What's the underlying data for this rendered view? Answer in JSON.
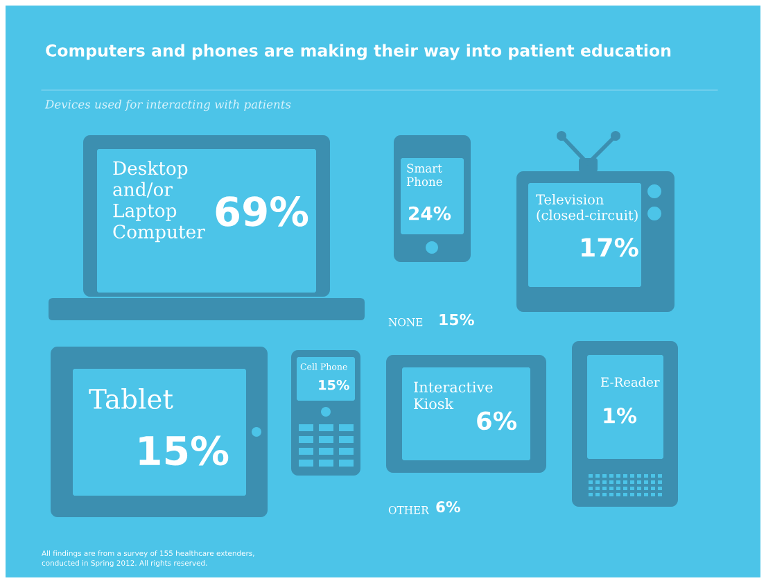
{
  "chart_data": {
    "type": "other",
    "title": "Computers and phones are making their way into patient education",
    "subtitle": "Devices used for interacting with patients",
    "categories": [
      "Desktop\nand/or\nLaptop\nComputer",
      "Smart\nPhone",
      "Television\n(closed-circuit)",
      "NONE",
      "Tablet",
      "Cell Phone",
      "Interactive\nKiosk",
      "E-Reader",
      "OTHER"
    ],
    "values": [
      69,
      24,
      17,
      15,
      15,
      15,
      6,
      1,
      6
    ],
    "value_labels": [
      "69%",
      "24%",
      "17%",
      "15%",
      "15%",
      "15%",
      "6%",
      "1%",
      "6%"
    ],
    "colors": [
      "#3c8fb0",
      "#3c8fb0",
      "#3c8fb0",
      null,
      "#3c8fb0",
      "#3c8fb0",
      "#3c8fb0",
      "#3c8fb0",
      null
    ],
    "annotations": [
      "All findings are from a survey of 155 healthcare extenders,\nconducted in Spring 2012. All rights reserved."
    ]
  }
}
